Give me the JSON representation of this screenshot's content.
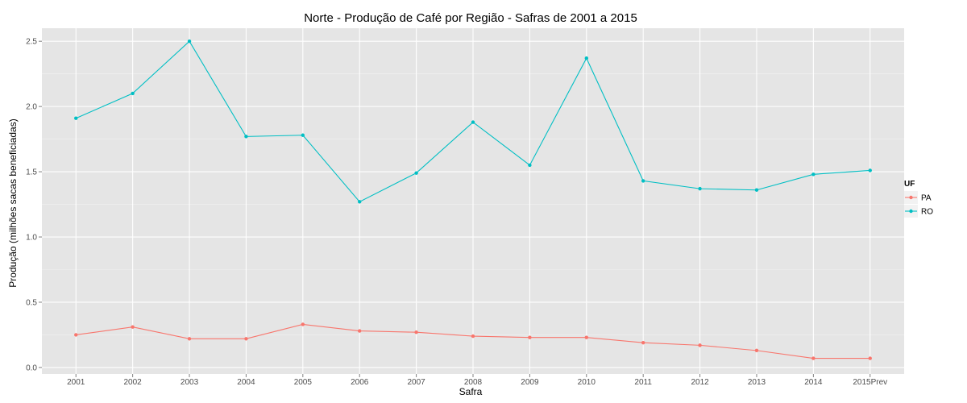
{
  "chart_data": {
    "type": "line",
    "title": "Norte  - Produção de Café por Região - Safras de 2001 a 2015",
    "xlabel": "Safra",
    "ylabel": "Produção (milhões sacas beneficiadas)",
    "categories": [
      "2001",
      "2002",
      "2003",
      "2004",
      "2005",
      "2006",
      "2007",
      "2008",
      "2009",
      "2010",
      "2011",
      "2012",
      "2013",
      "2014",
      "2015Prev"
    ],
    "ylim": [
      -0.05,
      2.6
    ],
    "yticks": [
      0.0,
      0.5,
      1.0,
      1.5,
      2.0,
      2.5
    ],
    "ytick_labels": [
      "0.0",
      "0.5",
      "1.0",
      "1.5",
      "2.0",
      "2.5"
    ],
    "grid": true,
    "legend": {
      "title": "UF",
      "position": "right"
    },
    "series": [
      {
        "name": "PA",
        "color": "#F8766D",
        "values": [
          0.25,
          0.31,
          0.22,
          0.22,
          0.33,
          0.28,
          0.27,
          0.24,
          0.23,
          0.23,
          0.19,
          0.17,
          0.13,
          0.07,
          0.07
        ]
      },
      {
        "name": "RO",
        "color": "#00BFC4",
        "values": [
          1.91,
          2.1,
          2.5,
          1.77,
          1.78,
          1.27,
          1.49,
          1.88,
          1.55,
          2.37,
          1.43,
          1.37,
          1.36,
          1.48,
          1.51
        ]
      }
    ]
  }
}
